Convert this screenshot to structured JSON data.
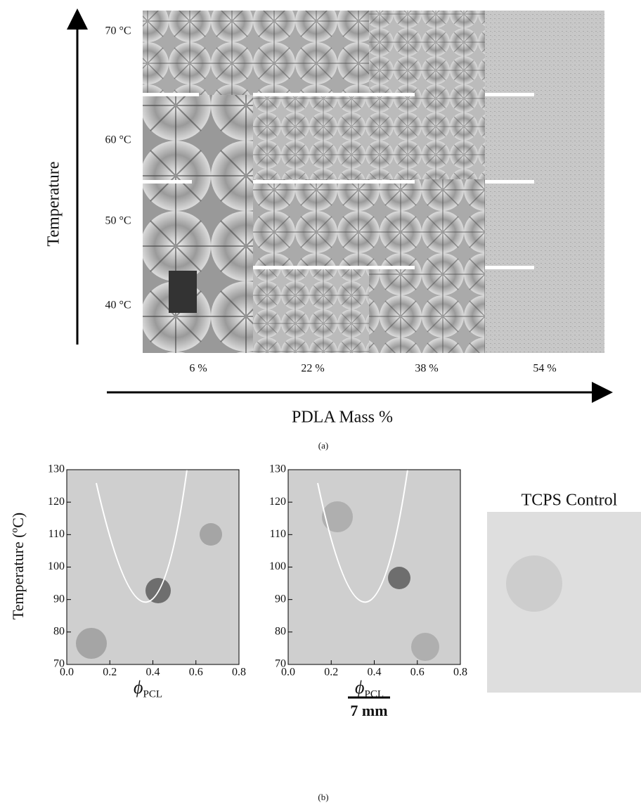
{
  "panel_a": {
    "y_axis_label": "Temperature",
    "row_labels": [
      "70 °C",
      "60 °C",
      "50 °C",
      "40 °C"
    ],
    "column_labels": [
      "6 %",
      "22 %",
      "38 %",
      "54 %"
    ],
    "x_axis_label": "PDLA Mass %",
    "caption": "(a)"
  },
  "panel_b": {
    "y_axis_label": "Temperature (ºC)",
    "yticks": [
      70,
      80,
      90,
      100,
      110,
      120,
      130
    ],
    "xticks": [
      {
        "value": 0,
        "label": "0.0"
      },
      {
        "value": 0.2,
        "label": "0.2"
      },
      {
        "value": 0.4,
        "label": "0.4"
      },
      {
        "value": 0.6,
        "label": "0.6"
      },
      {
        "value": 0.8,
        "label": "0.8"
      }
    ],
    "x_axis_symbol": "ϕ",
    "x_axis_subscript": "PCL",
    "control_label": "TCPS Control",
    "scale_bar_label": "7 mm",
    "caption": "(b)"
  }
}
